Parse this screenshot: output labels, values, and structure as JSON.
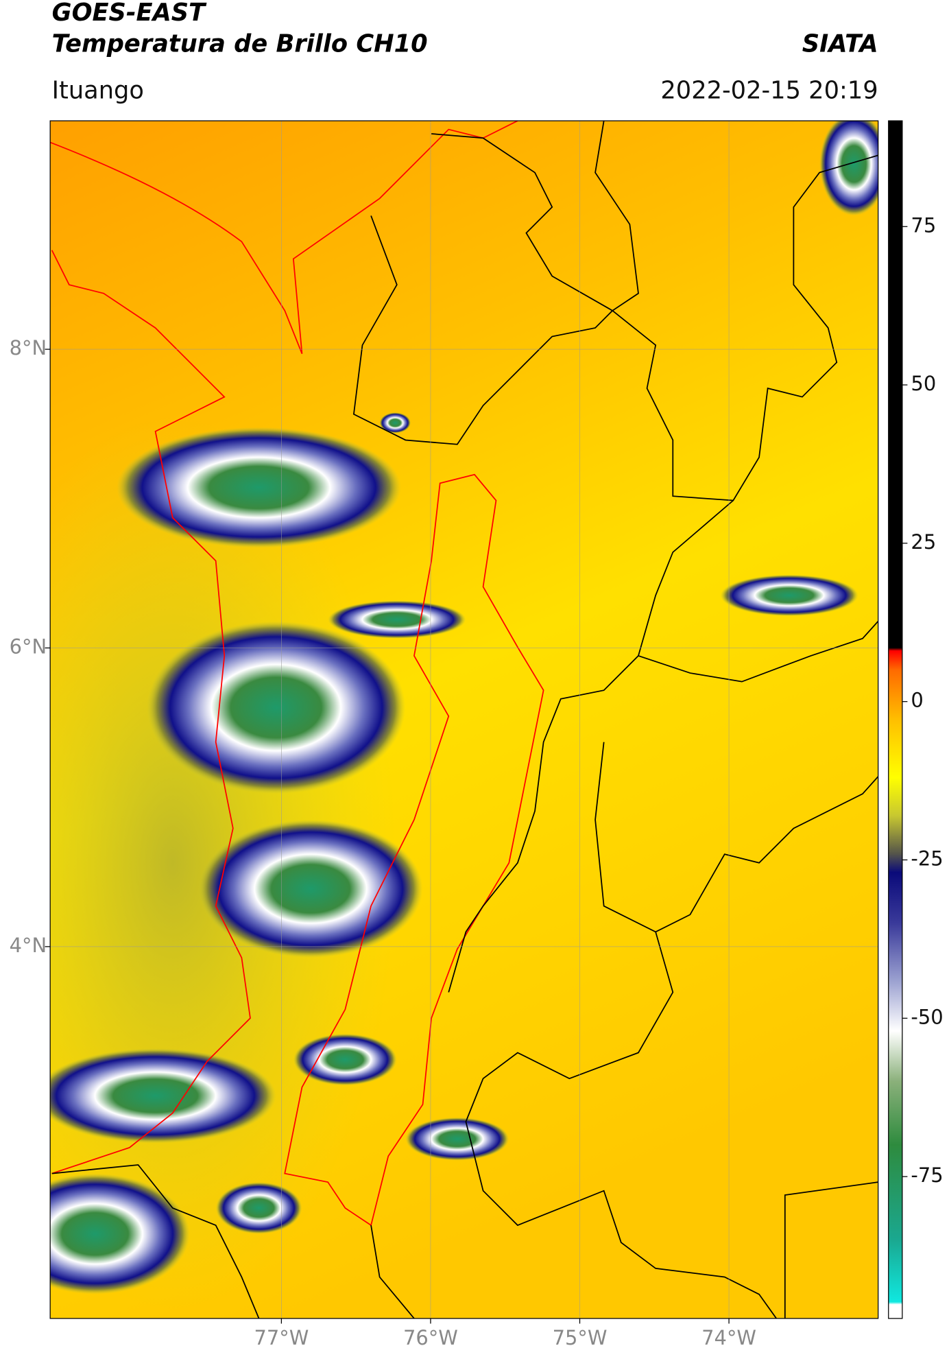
{
  "chart_data": {
    "type": "map",
    "title": "GOES-EAST",
    "subtitle": "Temperatura de Brillo CH10",
    "source": "SIATA",
    "region": "Ituango",
    "datetime": "2022-02-15 20:19",
    "xlim": [
      -78.55,
      -73.0
    ],
    "ylim": [
      1.51,
      9.53
    ],
    "xticks": [
      {
        "value": -77,
        "label": "77°W"
      },
      {
        "value": -76,
        "label": "76°W"
      },
      {
        "value": -75,
        "label": "75°W"
      },
      {
        "value": -74,
        "label": "74°W"
      }
    ],
    "yticks": [
      {
        "value": 8,
        "label": "8°N"
      },
      {
        "value": 6,
        "label": "6°N"
      },
      {
        "value": 4,
        "label": "4°N"
      }
    ],
    "grid": true,
    "colorbar": {
      "lim": [
        -97.4,
        91.7
      ],
      "ticks": [
        75,
        50,
        25,
        0,
        -25,
        -50,
        -75
      ],
      "stops": [
        {
          "value": -97.4,
          "color": "#ffffff"
        },
        {
          "value": -95.2,
          "color": "#ffffff"
        },
        {
          "value": -94.8,
          "color": "#10e8e0"
        },
        {
          "value": -85,
          "color": "#1aa890"
        },
        {
          "value": -70,
          "color": "#2e8b3e"
        },
        {
          "value": -60,
          "color": "#8ab07a"
        },
        {
          "value": -52,
          "color": "#ffffff"
        },
        {
          "value": -44,
          "color": "#9aa0d0"
        },
        {
          "value": -35,
          "color": "#3a3a9a"
        },
        {
          "value": -27,
          "color": "#0a0a7a"
        },
        {
          "value": -24,
          "color": "#55554a"
        },
        {
          "value": -18,
          "color": "#c8c830"
        },
        {
          "value": -12,
          "color": "#ffff00"
        },
        {
          "value": -3,
          "color": "#ffc000"
        },
        {
          "value": 5,
          "color": "#ff6a00"
        },
        {
          "value": 8,
          "color": "#ff0000"
        },
        {
          "value": 8.5,
          "color": "#000000"
        },
        {
          "value": 91.7,
          "color": "#000000"
        }
      ]
    }
  }
}
